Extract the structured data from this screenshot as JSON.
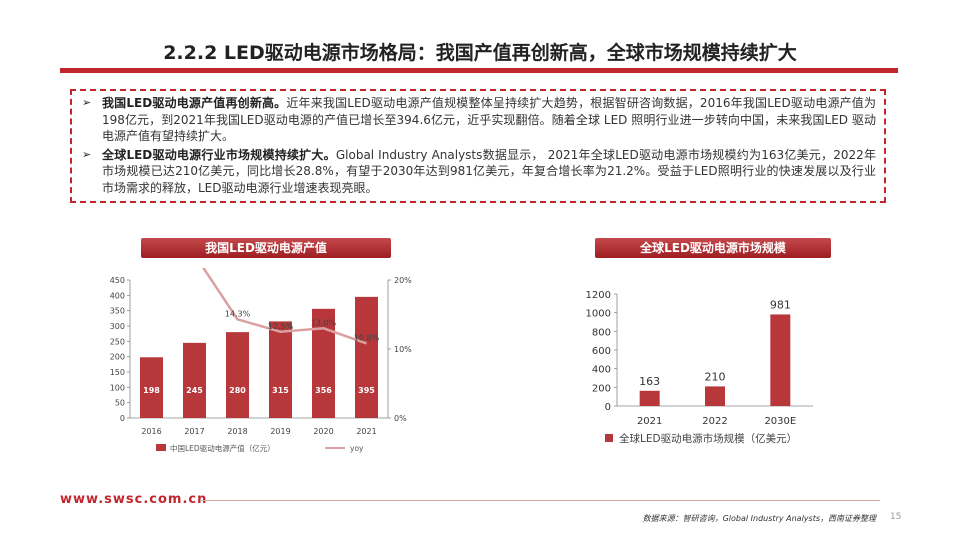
{
  "slide": {
    "title": "2.2.2 LED驱动电源市场格局：我国产值再创新高，全球市场规模持续扩大",
    "bullets": [
      {
        "lead": "我国LED驱动电源产值再创新高。",
        "text": "近年来我国LED驱动电源产值规模整体呈持续扩大趋势，根据智研咨询数据，2016年我国LED驱动电源产值为198亿元，到2021年我国LED驱动电源的产值已增长至394.6亿元，近乎实现翻倍。随着全球 LED 照明行业进一步转向中国，未来我国LED 驱动电源产值有望持续扩大。"
      },
      {
        "lead": "全球LED驱动电源行业市场规模持续扩大。",
        "text": "Global Industry Analysts数据显示， 2021年全球LED驱动电源市场规模约为163亿美元，2022年市场规模已达210亿美元，同比增长28.8%，有望于2030年达到981亿美元，年复合增长率为21.2%。受益于LED照明行业的快速发展以及行业市场需求的释放，LED驱动电源行业增速表现亮眼。"
      }
    ],
    "footer_url": "www.swsc.com.cn",
    "source": "数据来源：智研咨询，Global Industry Analysts，西南证券整理",
    "page_number": "15"
  },
  "colors": {
    "accent": "#c0272d",
    "bar": "#b7373a",
    "line": "#dba0a2"
  },
  "chart_data": [
    {
      "type": "bar",
      "header": "我国LED驱动电源产值",
      "categories": [
        "2016",
        "2017",
        "2018",
        "2019",
        "2020",
        "2021"
      ],
      "series": [
        {
          "name": "中国LED驱动电源产值（亿元）",
          "type": "bar",
          "values": [
            198,
            245,
            280,
            315,
            356,
            395
          ],
          "labels": [
            "198",
            "245",
            "280",
            "315",
            "356",
            "395"
          ]
        },
        {
          "name": "yoy",
          "type": "line",
          "axis": "right",
          "values": [
            null,
            23.7,
            14.3,
            12.5,
            13.0,
            10.8
          ],
          "labels": [
            "",
            "",
            "14.3%",
            "12.5%",
            "13.0%",
            "10.8%"
          ]
        }
      ],
      "ylim": [
        0,
        450
      ],
      "y_ticks": [
        "0",
        "50",
        "100",
        "150",
        "200",
        "250",
        "300",
        "350",
        "400",
        "450"
      ],
      "y2lim": [
        0,
        20
      ],
      "y2_ticks": [
        "0%",
        "10%",
        "20%"
      ],
      "legend_position": "bottom"
    },
    {
      "type": "bar",
      "header": "全球LED驱动电源市场规模",
      "categories": [
        "2021",
        "2022",
        "2030E"
      ],
      "series": [
        {
          "name": "全球LED驱动电源市场规模（亿美元）",
          "values": [
            163,
            210,
            981
          ],
          "labels": [
            "163",
            "210",
            "981"
          ]
        }
      ],
      "ylim": [
        0,
        1200
      ],
      "y_ticks": [
        "0",
        "200",
        "400",
        "600",
        "800",
        "1000",
        "1200"
      ],
      "legend_position": "bottom"
    }
  ]
}
